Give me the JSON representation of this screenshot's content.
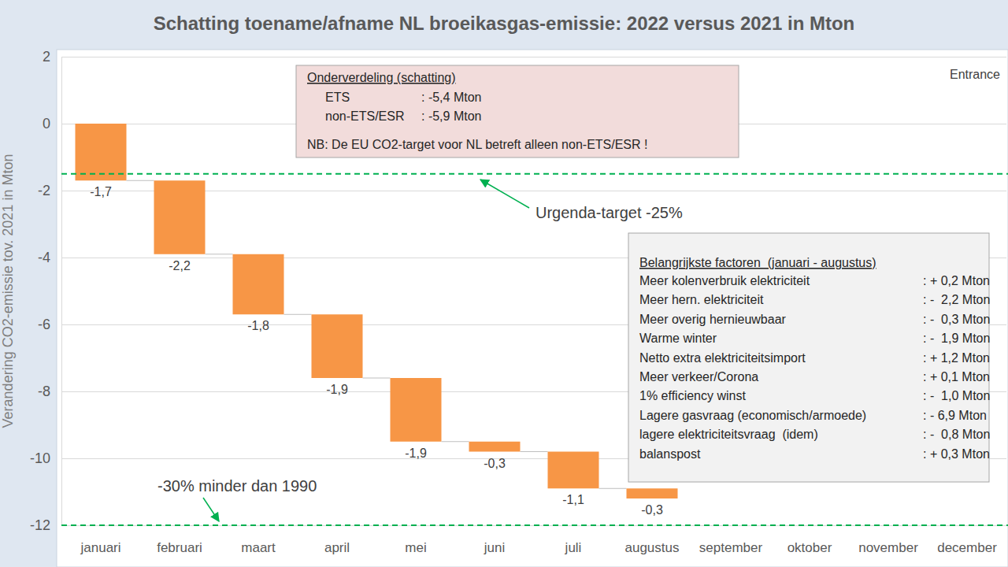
{
  "chart_data": {
    "type": "waterfall",
    "title": "Schatting toename/afname NL broeikasgas-emissie: 2022 versus 2021 in Mton",
    "y_label": "Verandering CO2-emissie tov. 2021 in Mton",
    "categories": [
      "januari",
      "februari",
      "maart",
      "april",
      "mei",
      "juni",
      "juli",
      "augustus",
      "september",
      "oktober",
      "november",
      "december"
    ],
    "values": [
      -1.7,
      -2.2,
      -1.8,
      -1.9,
      -1.9,
      -0.3,
      -1.1,
      -0.3,
      null,
      null,
      null,
      null
    ],
    "value_labels": [
      "-1,7",
      "-2,2",
      "-1,8",
      "-1,9",
      "-1,9",
      "-0,3",
      "-1,1",
      "-0,3",
      null,
      null,
      null,
      null
    ],
    "color": "#f79646",
    "data_labels": true,
    "grid": true,
    "ylim": [
      -12,
      2
    ],
    "yticks": [
      2,
      0,
      -2,
      -4,
      -6,
      -8,
      -10,
      -12
    ],
    "reference_lines": [
      {
        "value": -1.5,
        "label": "Urgenda-target -25%",
        "color": "#00b050",
        "line_style": "dashed"
      },
      {
        "value": -12,
        "label": "-30% minder dan 1990",
        "color": "#00b050",
        "line_style": "dashed"
      }
    ],
    "annotations": {
      "source": "Entrance",
      "breakdown": {
        "title": "Onderverdeling (schatting)",
        "rows": [
          [
            "ETS",
            ": -5,4 Mton"
          ],
          [
            "non-ETS/ESR",
            ": -5,9 Mton"
          ]
        ],
        "note": "NB: De EU CO2-target voor NL betreft alleen non-ETS/ESR !"
      },
      "factors": {
        "title": "Belangrijkste factoren  (januari - augustus)",
        "rows": [
          [
            "Meer kolenverbruik elektriciteit",
            ": + 0,2 Mton"
          ],
          [
            "Meer hern. elektriciteit",
            ": -  2,2 Mton"
          ],
          [
            "Meer overig hernieuwbaar",
            ": -  0,3 Mton"
          ],
          [
            "Warme winter",
            ": -  1,9 Mton"
          ],
          [
            "Netto extra elektriciteitsimport",
            ": + 1,2 Mton"
          ],
          [
            "Meer verkeer/Corona",
            ": + 0,1 Mton"
          ],
          [
            "1% efficiency winst",
            ": -  1,0 Mton"
          ],
          [
            "Lagere gasvraag (economisch/armoede)",
            ": - 6,9 Mton"
          ],
          [
            "lagere elektriciteitsvraag  (idem)",
            ": -  0,8 Mton"
          ],
          [
            "balanspost",
            ": + 0,3 Mton"
          ]
        ]
      }
    }
  }
}
